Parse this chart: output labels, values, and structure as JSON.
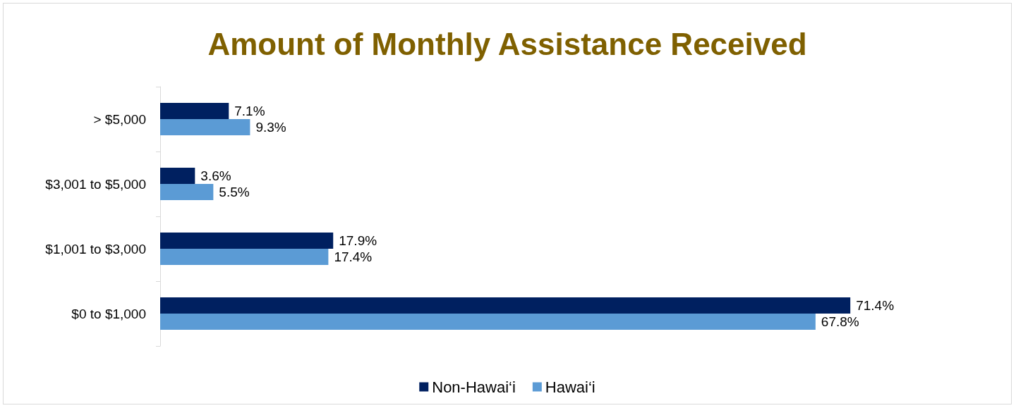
{
  "chart_data": {
    "type": "bar",
    "orientation": "horizontal",
    "title": "Amount of Monthly Assistance Received",
    "categories": [
      "> $5,000",
      "$3,001 to $5,000",
      "$1,001 to $3,000",
      "$0 to $1,000"
    ],
    "series": [
      {
        "name": "Non-Hawai‘i",
        "color": "#002060",
        "values": [
          7.1,
          3.6,
          17.9,
          71.4
        ],
        "value_labels": [
          "7.1%",
          "3.6%",
          "17.9%",
          "71.4%"
        ]
      },
      {
        "name": "Hawai‘i",
        "color": "#5b9bd5",
        "values": [
          9.3,
          5.5,
          17.4,
          67.8
        ],
        "value_labels": [
          "9.3%",
          "5.5%",
          "17.4%",
          "67.8%"
        ]
      }
    ],
    "legend": "bottom",
    "grid": false
  }
}
